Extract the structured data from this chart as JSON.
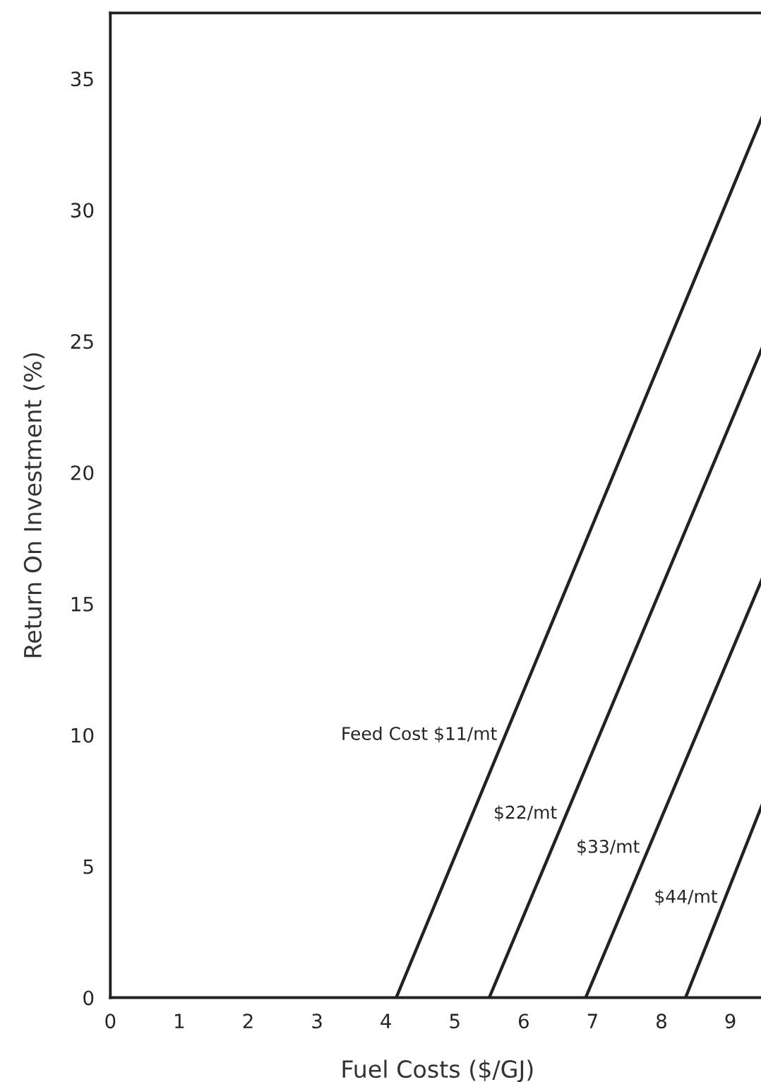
{
  "chart_data": {
    "type": "line",
    "xlabel": "Fuel Costs ($/GJ)",
    "ylabel": "Return On Investment (%)",
    "series": [
      {
        "color": "#222222",
        "x": [
          4.15,
          9.47
        ],
        "values": [
          0,
          33.6
        ]
      },
      {
        "color": "#222222",
        "x": [
          5.5,
          9.47
        ],
        "values": [
          0,
          24.8
        ]
      },
      {
        "color": "#222222",
        "x": [
          6.9,
          9.47
        ],
        "values": [
          0,
          16.0
        ]
      },
      {
        "color": "#222222",
        "x": [
          8.35,
          9.47
        ],
        "values": [
          0,
          7.4
        ]
      }
    ],
    "xlim": [
      0,
      9.5
    ],
    "xticks": [
      0,
      1,
      2,
      3,
      4,
      5,
      6,
      7,
      8,
      9
    ],
    "ylim": [
      0,
      37.5
    ],
    "yticks": [
      0,
      5,
      10,
      15,
      20,
      25,
      30,
      35
    ],
    "grid": false,
    "legend": false,
    "marker": "none",
    "line_style": "solid",
    "annotations": [
      {
        "text": "Feed Cost $11/mt",
        "x": 5.73,
        "y": 10
      },
      {
        "text": "$22/mt",
        "x": 6.6,
        "y": 7
      },
      {
        "text": "$33/mt",
        "x": 7.8,
        "y": 5.7
      },
      {
        "text": "$44/mt",
        "x": 8.93,
        "y": 3.8
      }
    ]
  }
}
